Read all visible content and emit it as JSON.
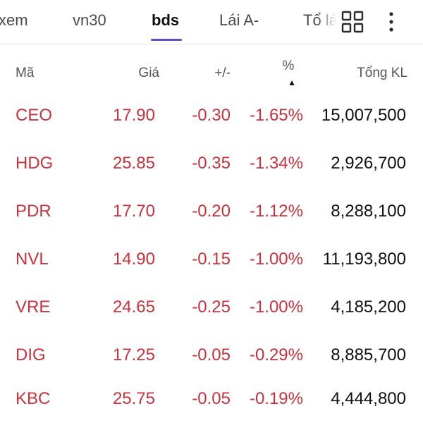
{
  "colors": {
    "accent": "#5a4fcf",
    "down": "#c8323b",
    "text_primary": "#111114",
    "text_secondary": "#55555a"
  },
  "tabs": [
    {
      "label": "xem",
      "active": false
    },
    {
      "label": "vn30",
      "active": false
    },
    {
      "label": "bds",
      "active": true
    },
    {
      "label": "Lái A-",
      "active": false
    },
    {
      "label": "Tổ lá",
      "active": false
    }
  ],
  "toolbar": {
    "grid_icon": "grid-view-icon",
    "more_icon": "more-vertical-icon"
  },
  "table": {
    "headers": {
      "code": "Mã",
      "price": "Giá",
      "change": "+/-",
      "percent": "%",
      "volume": "Tổng KL"
    },
    "sort": {
      "column": "percent",
      "direction": "ascending",
      "indicator": "▲"
    },
    "rows": [
      {
        "code": "CEO",
        "price": "17.90",
        "change": "-0.30",
        "percent": "-1.65%",
        "volume": "15,007,500"
      },
      {
        "code": "HDG",
        "price": "25.85",
        "change": "-0.35",
        "percent": "-1.34%",
        "volume": "2,926,700"
      },
      {
        "code": "PDR",
        "price": "17.70",
        "change": "-0.20",
        "percent": "-1.12%",
        "volume": "8,288,100"
      },
      {
        "code": "NVL",
        "price": "14.90",
        "change": "-0.15",
        "percent": "-1.00%",
        "volume": "11,193,800"
      },
      {
        "code": "VRE",
        "price": "24.65",
        "change": "-0.25",
        "percent": "-1.00%",
        "volume": "4,185,200"
      },
      {
        "code": "DIG",
        "price": "17.25",
        "change": "-0.05",
        "percent": "-0.29%",
        "volume": "8,885,700"
      },
      {
        "code": "KBC",
        "price": "25.75",
        "change": "-0.05",
        "percent": "-0.19%",
        "volume": "4,444,800"
      }
    ]
  }
}
